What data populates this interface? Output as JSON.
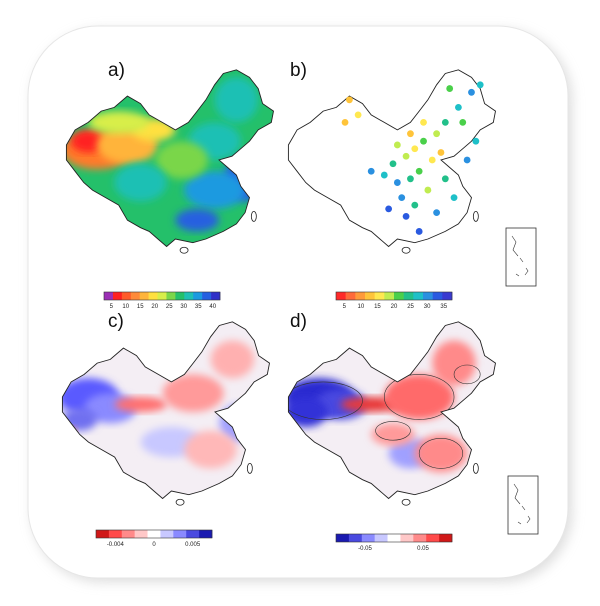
{
  "panels": [
    {
      "label": "a)",
      "colorbar": {
        "ticks": [
          "5",
          "10",
          "15",
          "20",
          "25",
          "30",
          "35",
          "40"
        ],
        "colors": [
          "#9b2fb5",
          "#ff2020",
          "#ff5a2a",
          "#ff8a3a",
          "#ffb43a",
          "#ffe040",
          "#d8ee4a",
          "#7ad64a",
          "#24c06a",
          "#1ec0b4",
          "#1a9ae0",
          "#2560e0",
          "#3030c8"
        ]
      }
    },
    {
      "label": "b)",
      "colorbar": {
        "ticks": [
          "5",
          "10",
          "15",
          "20",
          "25",
          "30",
          "35"
        ],
        "colors": [
          "#ff2a2a",
          "#ff6a3a",
          "#ff9a3a",
          "#ffc43a",
          "#ffe850",
          "#c0ec50",
          "#4ad04a",
          "#22c08a",
          "#1ec0c8",
          "#2a90e0",
          "#2a5ae0",
          "#3a3ad0"
        ]
      }
    },
    {
      "label": "c)",
      "colorbar": {
        "ticks": [
          "-0.004",
          "0",
          "0.005"
        ],
        "colors": [
          "#d01818",
          "#ff4a4a",
          "#ff8a8a",
          "#ffc8c8",
          "#ffffff",
          "#c8c8ff",
          "#8a8aff",
          "#4a4ae0",
          "#1a1ab0"
        ]
      }
    },
    {
      "label": "d)",
      "colorbar": {
        "ticks": [
          "-0.05",
          "0.05"
        ],
        "colors": [
          "#1a1ab0",
          "#4a4ae0",
          "#8a8aff",
          "#c8c8ff",
          "#ffffff",
          "#ffc8c8",
          "#ff8a8a",
          "#ff4a4a",
          "#d01818"
        ]
      }
    }
  ]
}
